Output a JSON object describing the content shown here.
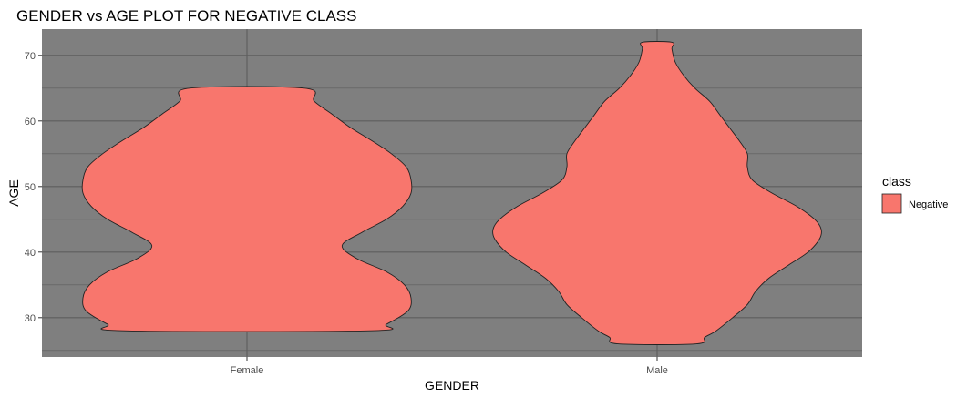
{
  "chart_data": {
    "type": "violin",
    "title": "GENDER vs AGE PLOT FOR NEGATIVE CLASS",
    "xlabel": "GENDER",
    "ylabel": "AGE",
    "categories": [
      "Female",
      "Male"
    ],
    "ylim": [
      24,
      74
    ],
    "yticks": [
      30,
      40,
      50,
      60,
      70
    ],
    "y_minor_ticks": [
      25,
      35,
      45,
      55,
      65
    ],
    "grid": true,
    "panel_background": "#7f7f7f",
    "grid_color": "#5e5e5e",
    "fill_color": "#f8766d",
    "outline_color": "#222222",
    "legend": {
      "title": "class",
      "position": "right",
      "entries": [
        {
          "label": "Negative",
          "color": "#f8766d"
        }
      ]
    },
    "series": [
      {
        "name": "Negative",
        "violins": [
          {
            "category": "Female",
            "min": 28,
            "max": 65,
            "profile": [
              [
                28,
                0.75
              ],
              [
                29,
                0.85
              ],
              [
                31,
                0.98
              ],
              [
                33,
                1.0
              ],
              [
                35,
                0.96
              ],
              [
                37,
                0.85
              ],
              [
                39,
                0.67
              ],
              [
                41,
                0.58
              ],
              [
                43,
                0.7
              ],
              [
                45,
                0.85
              ],
              [
                47,
                0.95
              ],
              [
                49,
                1.0
              ],
              [
                51,
                1.0
              ],
              [
                53,
                0.97
              ],
              [
                55,
                0.88
              ],
              [
                57,
                0.76
              ],
              [
                59,
                0.63
              ],
              [
                61,
                0.52
              ],
              [
                63,
                0.41
              ],
              [
                65,
                0.35
              ]
            ]
          },
          {
            "category": "Male",
            "min": 26,
            "max": 72,
            "profile": [
              [
                26,
                0.24
              ],
              [
                27,
                0.29
              ],
              [
                28,
                0.36
              ],
              [
                30,
                0.46
              ],
              [
                32,
                0.55
              ],
              [
                34,
                0.6
              ],
              [
                36,
                0.68
              ],
              [
                38,
                0.8
              ],
              [
                40,
                0.92
              ],
              [
                42,
                0.99
              ],
              [
                43.5,
                1.0
              ],
              [
                45,
                0.96
              ],
              [
                47,
                0.85
              ],
              [
                49,
                0.7
              ],
              [
                51,
                0.58
              ],
              [
                53,
                0.55
              ],
              [
                55,
                0.55
              ],
              [
                57,
                0.5
              ],
              [
                59,
                0.44
              ],
              [
                61,
                0.38
              ],
              [
                63,
                0.32
              ],
              [
                65,
                0.23
              ],
              [
                67,
                0.16
              ],
              [
                69,
                0.11
              ],
              [
                71,
                0.09
              ],
              [
                72,
                0.09
              ]
            ]
          }
        ]
      }
    ]
  }
}
